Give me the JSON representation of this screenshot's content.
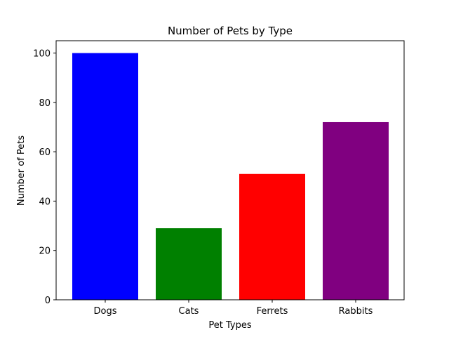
{
  "chart_data": {
    "type": "bar",
    "title": "Number of Pets by Type",
    "xlabel": "Pet Types",
    "ylabel": "Number of Pets",
    "categories": [
      "Dogs",
      "Cats",
      "Ferrets",
      "Rabbits"
    ],
    "values": [
      100,
      29,
      51,
      72
    ],
    "colors": [
      "#0000ff",
      "#008000",
      "#ff0000",
      "#800080"
    ],
    "ylim": [
      0,
      105
    ],
    "yticks": [
      0,
      20,
      40,
      60,
      80,
      100
    ],
    "grid": false
  }
}
